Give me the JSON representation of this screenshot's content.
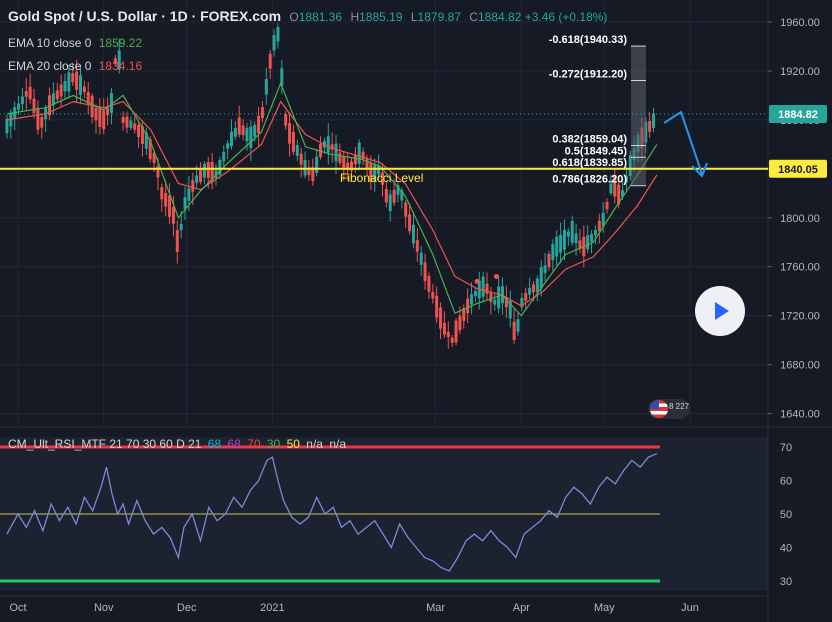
{
  "legend": {
    "symbol": "Gold Spot / U.S. Dollar · 1D · FOREX.com",
    "o_label": "O",
    "o": "1881.36",
    "h_label": "H",
    "h": "1885.19",
    "l_label": "L",
    "l": "1879.87",
    "c_label": "C",
    "c": "1884.82",
    "change": "+3.46 (+0.18%)"
  },
  "ema10": {
    "label": "EMA 10 close 0",
    "value": "1859.22",
    "color": "#4caf50"
  },
  "ema20": {
    "label": "EMA 20 close 0",
    "value": "1834.16",
    "color": "#ef5350"
  },
  "rsi": {
    "label": "CM_Ult_RSI_MTF 21 70 30 60 D 21",
    "v68a": "68",
    "v68b": "68",
    "v70": "70",
    "v30": "30",
    "v50": "50",
    "na1": "n/a",
    "na2": "n/a"
  },
  "badge": {
    "text": "8 227"
  },
  "chart_data": {
    "type": "candlestick",
    "price_axis": {
      "ticks": [
        1960,
        1920,
        1880,
        1840,
        1800,
        1760,
        1720,
        1680,
        1640
      ]
    },
    "price_range": [
      1629,
      1978
    ],
    "rsi_axis": {
      "ticks": [
        70,
        60,
        50,
        40,
        30
      ]
    },
    "rsi_range": [
      27,
      73
    ],
    "time_labels": [
      {
        "label": "Oct",
        "day": 0
      },
      {
        "label": "Nov",
        "day": 31
      },
      {
        "label": "Dec",
        "day": 61
      },
      {
        "label": "2021",
        "day": 92
      },
      {
        "label": "Mar",
        "day": 151
      },
      {
        "label": "Apr",
        "day": 182
      },
      {
        "label": "May",
        "day": 212
      },
      {
        "label": "Jun",
        "day": 243
      }
    ],
    "price_path": [
      [
        -4,
        1875
      ],
      [
        0,
        1890
      ],
      [
        4,
        1905
      ],
      [
        8,
        1875
      ],
      [
        12,
        1895
      ],
      [
        16,
        1905
      ],
      [
        20,
        1915
      ],
      [
        24,
        1905
      ],
      [
        28,
        1885
      ],
      [
        31,
        1880
      ],
      [
        34,
        1895
      ],
      [
        36,
        1950
      ],
      [
        38,
        1880
      ],
      [
        42,
        1875
      ],
      [
        46,
        1865
      ],
      [
        50,
        1845
      ],
      [
        52,
        1820
      ],
      [
        56,
        1805
      ],
      [
        58,
        1775
      ],
      [
        60,
        1810
      ],
      [
        64,
        1830
      ],
      [
        68,
        1840
      ],
      [
        72,
        1835
      ],
      [
        76,
        1860
      ],
      [
        80,
        1875
      ],
      [
        84,
        1865
      ],
      [
        88,
        1880
      ],
      [
        92,
        1940
      ],
      [
        94,
        1950
      ],
      [
        97,
        1875
      ],
      [
        100,
        1860
      ],
      [
        104,
        1840
      ],
      [
        107,
        1835
      ],
      [
        110,
        1860
      ],
      [
        113,
        1860
      ],
      [
        116,
        1850
      ],
      [
        120,
        1840
      ],
      [
        124,
        1855
      ],
      [
        128,
        1835
      ],
      [
        131,
        1840
      ],
      [
        134,
        1810
      ],
      [
        138,
        1825
      ],
      [
        141,
        1800
      ],
      [
        144,
        1780
      ],
      [
        148,
        1750
      ],
      [
        151,
        1730
      ],
      [
        154,
        1710
      ],
      [
        157,
        1700
      ],
      [
        160,
        1715
      ],
      [
        163,
        1730
      ],
      [
        166,
        1740
      ],
      [
        169,
        1745
      ],
      [
        172,
        1730
      ],
      [
        175,
        1738
      ],
      [
        178,
        1725
      ],
      [
        180,
        1700
      ],
      [
        182,
        1730
      ],
      [
        185,
        1740
      ],
      [
        188,
        1745
      ],
      [
        191,
        1760
      ],
      [
        194,
        1775
      ],
      [
        197,
        1780
      ],
      [
        200,
        1790
      ],
      [
        204,
        1775
      ],
      [
        208,
        1785
      ],
      [
        212,
        1800
      ],
      [
        215,
        1830
      ],
      [
        218,
        1815
      ],
      [
        221,
        1840
      ],
      [
        224,
        1860
      ],
      [
        227,
        1870
      ],
      [
        230,
        1880
      ],
      [
        231,
        1885
      ]
    ],
    "ema10_path": [
      [
        -4,
        1885
      ],
      [
        10,
        1890
      ],
      [
        20,
        1900
      ],
      [
        31,
        1888
      ],
      [
        38,
        1900
      ],
      [
        48,
        1862
      ],
      [
        58,
        1800
      ],
      [
        66,
        1822
      ],
      [
        76,
        1845
      ],
      [
        88,
        1870
      ],
      [
        95,
        1910
      ],
      [
        104,
        1858
      ],
      [
        113,
        1852
      ],
      [
        124,
        1848
      ],
      [
        131,
        1842
      ],
      [
        140,
        1818
      ],
      [
        150,
        1770
      ],
      [
        158,
        1722
      ],
      [
        166,
        1730
      ],
      [
        175,
        1737
      ],
      [
        182,
        1720
      ],
      [
        190,
        1745
      ],
      [
        198,
        1770
      ],
      [
        208,
        1780
      ],
      [
        216,
        1808
      ],
      [
        224,
        1835
      ],
      [
        231,
        1860
      ]
    ],
    "ema20_path": [
      [
        -4,
        1880
      ],
      [
        10,
        1885
      ],
      [
        20,
        1895
      ],
      [
        31,
        1890
      ],
      [
        38,
        1895
      ],
      [
        48,
        1872
      ],
      [
        58,
        1828
      ],
      [
        66,
        1823
      ],
      [
        76,
        1838
      ],
      [
        88,
        1860
      ],
      [
        95,
        1895
      ],
      [
        104,
        1868
      ],
      [
        113,
        1857
      ],
      [
        124,
        1850
      ],
      [
        131,
        1845
      ],
      [
        140,
        1828
      ],
      [
        150,
        1790
      ],
      [
        158,
        1752
      ],
      [
        166,
        1742
      ],
      [
        175,
        1737
      ],
      [
        182,
        1728
      ],
      [
        190,
        1740
      ],
      [
        198,
        1758
      ],
      [
        208,
        1768
      ],
      [
        216,
        1788
      ],
      [
        224,
        1810
      ],
      [
        231,
        1835
      ]
    ],
    "rsi_path": [
      [
        -4,
        44
      ],
      [
        0,
        50
      ],
      [
        3,
        46
      ],
      [
        6,
        51
      ],
      [
        9,
        45
      ],
      [
        12,
        53
      ],
      [
        15,
        48
      ],
      [
        18,
        52
      ],
      [
        21,
        47
      ],
      [
        24,
        55
      ],
      [
        27,
        51
      ],
      [
        30,
        58
      ],
      [
        32,
        64
      ],
      [
        34,
        56
      ],
      [
        36,
        50
      ],
      [
        38,
        53
      ],
      [
        40,
        47
      ],
      [
        43,
        54
      ],
      [
        46,
        48
      ],
      [
        49,
        44
      ],
      [
        52,
        46
      ],
      [
        55,
        43
      ],
      [
        58,
        37
      ],
      [
        60,
        46
      ],
      [
        63,
        50
      ],
      [
        66,
        42
      ],
      [
        69,
        52
      ],
      [
        72,
        48
      ],
      [
        75,
        50
      ],
      [
        78,
        55
      ],
      [
        81,
        52
      ],
      [
        84,
        57
      ],
      [
        87,
        60
      ],
      [
        90,
        66
      ],
      [
        92,
        67
      ],
      [
        94,
        60
      ],
      [
        96,
        54
      ],
      [
        99,
        49
      ],
      [
        102,
        47
      ],
      [
        105,
        49
      ],
      [
        108,
        55
      ],
      [
        111,
        50
      ],
      [
        114,
        52
      ],
      [
        117,
        46
      ],
      [
        120,
        48
      ],
      [
        123,
        44
      ],
      [
        126,
        46
      ],
      [
        129,
        48
      ],
      [
        132,
        44
      ],
      [
        135,
        40
      ],
      [
        138,
        47
      ],
      [
        141,
        43
      ],
      [
        144,
        40
      ],
      [
        147,
        37
      ],
      [
        150,
        36
      ],
      [
        153,
        34
      ],
      [
        156,
        33
      ],
      [
        159,
        37
      ],
      [
        162,
        42
      ],
      [
        165,
        44
      ],
      [
        168,
        42
      ],
      [
        171,
        45
      ],
      [
        174,
        42
      ],
      [
        177,
        40
      ],
      [
        180,
        37
      ],
      [
        183,
        44
      ],
      [
        186,
        46
      ],
      [
        189,
        48
      ],
      [
        192,
        51
      ],
      [
        195,
        49
      ],
      [
        198,
        55
      ],
      [
        201,
        58
      ],
      [
        204,
        56
      ],
      [
        207,
        53
      ],
      [
        210,
        58
      ],
      [
        213,
        61
      ],
      [
        216,
        59
      ],
      [
        219,
        63
      ],
      [
        222,
        66
      ],
      [
        225,
        64
      ],
      [
        228,
        67
      ],
      [
        231,
        68
      ]
    ],
    "hlines": [
      {
        "price": 1840.05,
        "label": "1840.05",
        "color": "#ffeb3b"
      },
      {
        "price": 1884.82,
        "label": "1884.82",
        "color": "#26a69a"
      }
    ],
    "fib_levels": [
      {
        "label": "-0.618(1940.33)",
        "price": 1940.33
      },
      {
        "label": "-0.272(1912.20)",
        "price": 1912.2
      },
      {
        "label": "0.382(1859.04)",
        "price": 1859.04
      },
      {
        "label": "0.5(1849.45)",
        "price": 1849.45
      },
      {
        "label": "0.618(1839.85)",
        "price": 1839.85
      },
      {
        "label": "0.786(1826.20)",
        "price": 1826.2
      }
    ],
    "annotation": "Fibonacci Level",
    "rsi_levels": [
      70,
      50,
      30
    ]
  }
}
